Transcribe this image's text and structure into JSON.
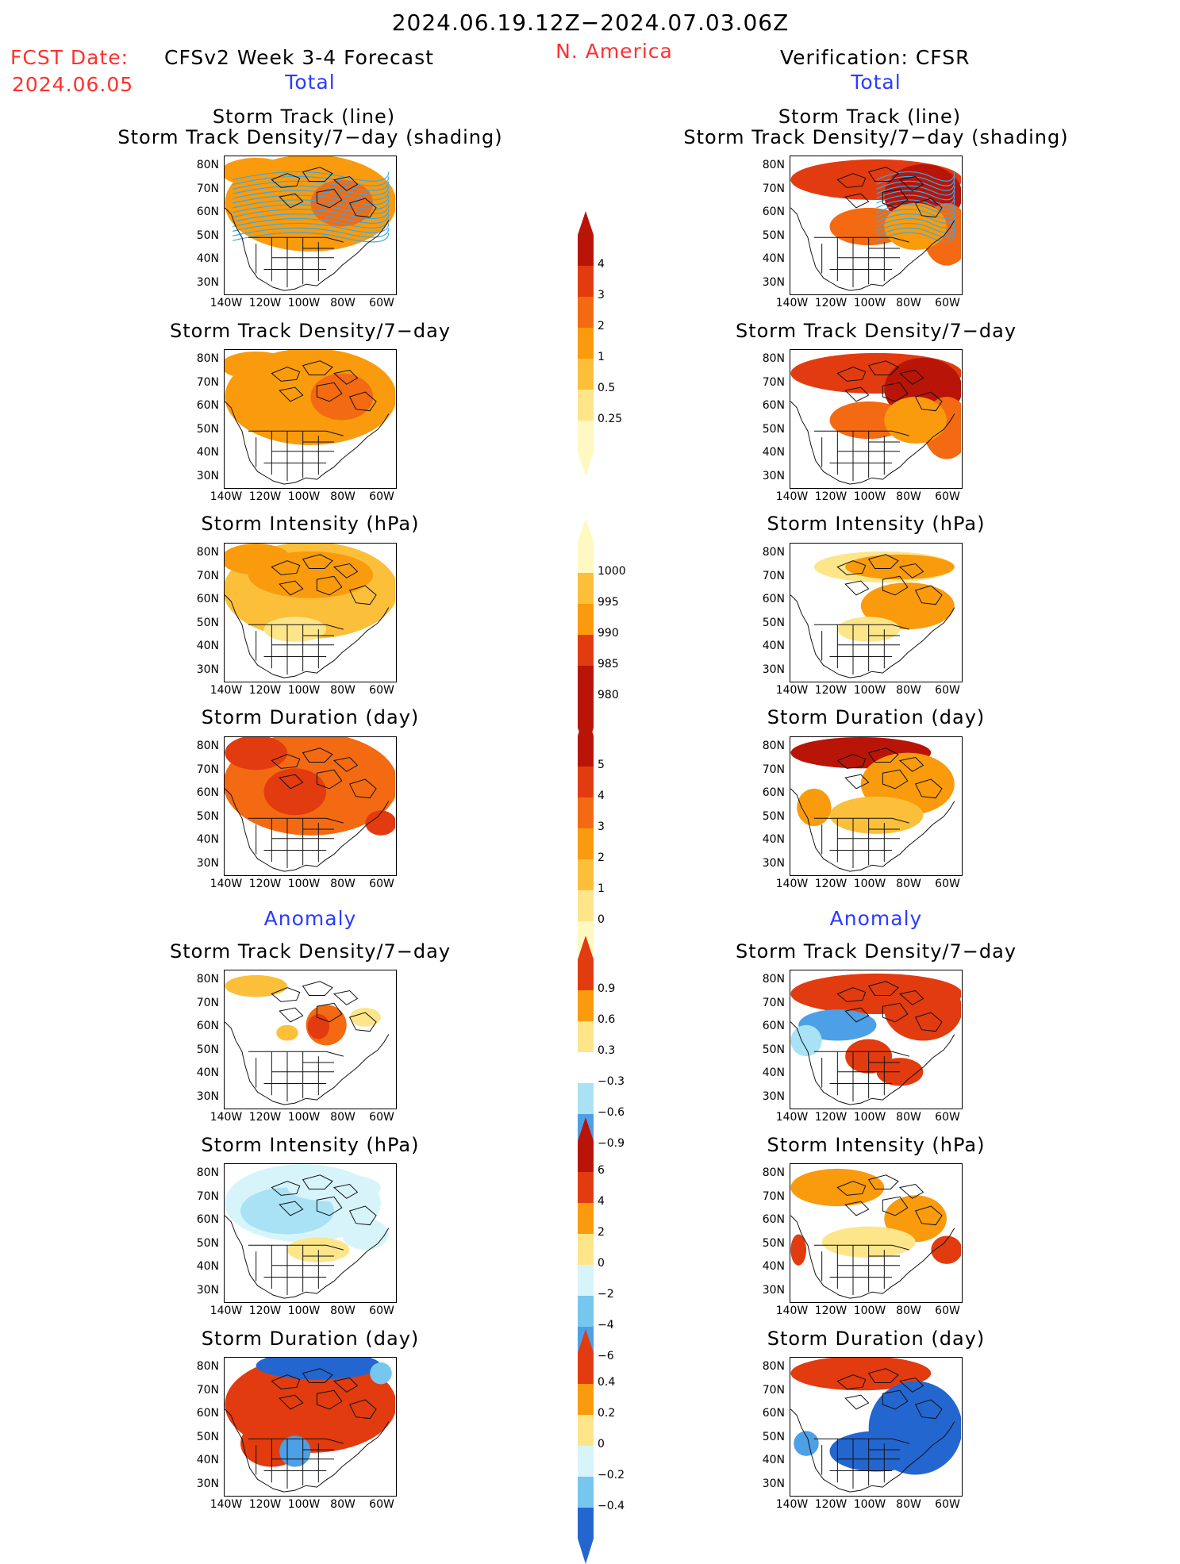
{
  "header": {
    "date_range": "2024.06.19.12Z−2024.07.03.06Z",
    "region": "N. America",
    "fcst_label": "FCST Date:",
    "fcst_date": "2024.06.05",
    "model": "CFSv2 Week 3-4 Forecast",
    "verification": "Verification: CFSR"
  },
  "sections": {
    "total": "Total",
    "anomaly": "Anomaly"
  },
  "panel_titles": {
    "track_line": "Storm Track (line)",
    "track_density_shading": "Storm Track Density/7−day (shading)",
    "track_density": "Storm Track Density/7−day",
    "intensity": "Storm Intensity (hPa)",
    "duration": "Storm Duration (day)"
  },
  "axis": {
    "lat": [
      "80N",
      "70N",
      "60N",
      "50N",
      "40N",
      "30N"
    ],
    "lon": [
      "140W",
      "120W",
      "100W",
      "80W",
      "60W"
    ]
  },
  "colorbars": {
    "density": [
      "4",
      "3",
      "2",
      "1",
      "0.5",
      "0.25"
    ],
    "intensity": [
      "1000",
      "995",
      "990",
      "985",
      "980"
    ],
    "duration": [
      "5",
      "4",
      "3",
      "2",
      "1",
      "0"
    ],
    "density_anom": [
      "0.9",
      "0.6",
      "0.3",
      "−0.3",
      "−0.6",
      "−0.9"
    ],
    "intensity_anom": [
      "6",
      "4",
      "2",
      "0",
      "−2",
      "−4",
      "−6"
    ],
    "duration_anom": [
      "0.4",
      "0.2",
      "0",
      "−0.2",
      "−0.4"
    ]
  },
  "colors": {
    "title_red": "#ff3030",
    "label_blue": "#2b3bff",
    "warm": [
      "#fff8c0",
      "#fde58a",
      "#fbbf3a",
      "#f99b0c",
      "#f36a12",
      "#e23b10",
      "#b81508"
    ],
    "cool": [
      "#d8f4fb",
      "#a9e2f5",
      "#77c6ee",
      "#4d9fe6",
      "#2466d0"
    ]
  }
}
